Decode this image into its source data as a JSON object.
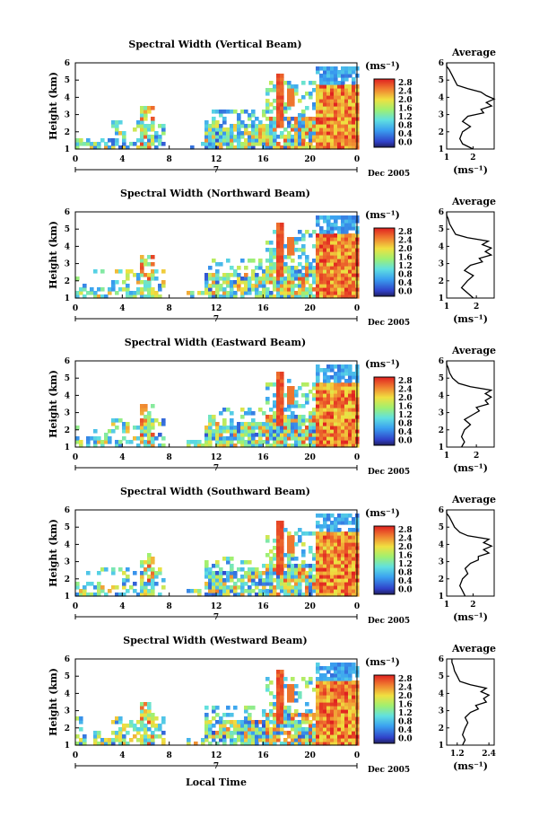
{
  "chart_data": [
    {
      "type": "heatmap",
      "title": "Spectral Width (Vertical Beam)",
      "ylabel": "Height (km)",
      "colorbar_unit": "(ms⁻¹)",
      "colorbar_ticks": [
        "2.8",
        "2.4",
        "2.0",
        "1.6",
        "1.2",
        "0.8",
        "0.4",
        "0.0"
      ],
      "colorbar_range": [
        0,
        3.0
      ],
      "x_ticks": [
        "0",
        "4",
        "8",
        "12",
        "16",
        "20",
        "0"
      ],
      "date_label": "7",
      "month_label": "Dec 2005",
      "y_ticks": [
        "6",
        "5",
        "4",
        "3",
        "2",
        "1"
      ],
      "average": {
        "title": "Average",
        "x_ticks": [
          "1",
          "2"
        ],
        "xlabel": "(ms⁻¹)",
        "xlim": [
          1.0,
          2.8
        ],
        "height": [
          1.0,
          1.3,
          1.6,
          2.0,
          2.3,
          2.6,
          2.9,
          3.1,
          3.3,
          3.5,
          3.7,
          3.9,
          4.1,
          4.3,
          4.5,
          4.7,
          5.0,
          5.3,
          5.6,
          5.8,
          6.0
        ],
        "value": [
          2.0,
          1.6,
          1.5,
          1.6,
          1.9,
          1.6,
          1.8,
          2.4,
          2.3,
          2.7,
          2.5,
          2.8,
          2.5,
          2.3,
          1.8,
          1.4,
          1.3,
          1.2,
          1.1,
          1.0,
          1.0
        ]
      }
    },
    {
      "type": "heatmap",
      "title": "Spectral Width (Northward Beam)",
      "ylabel": "Height (km)",
      "colorbar_unit": "(ms⁻¹)",
      "colorbar_ticks": [
        "2.8",
        "2.4",
        "2.0",
        "1.6",
        "1.2",
        "0.8",
        "0.4",
        "0.0"
      ],
      "colorbar_range": [
        0,
        3.0
      ],
      "x_ticks": [
        "0",
        "4",
        "8",
        "12",
        "16",
        "20",
        "0"
      ],
      "date_label": "7",
      "month_label": "Dec 2005",
      "y_ticks": [
        "6",
        "5",
        "4",
        "3",
        "2",
        "1"
      ],
      "average": {
        "title": "Average",
        "x_ticks": [
          "1",
          "2"
        ],
        "xlabel": "(ms⁻¹)",
        "xlim": [
          1.0,
          2.6
        ],
        "height": [
          1.0,
          1.3,
          1.6,
          2.0,
          2.3,
          2.6,
          2.9,
          3.1,
          3.3,
          3.5,
          3.7,
          3.9,
          4.1,
          4.3,
          4.5,
          4.7,
          5.0,
          5.3,
          5.6,
          5.8,
          6.0
        ],
        "value": [
          1.9,
          1.7,
          1.5,
          1.7,
          1.9,
          1.6,
          1.8,
          2.2,
          2.1,
          2.5,
          2.3,
          2.5,
          2.2,
          2.4,
          1.7,
          1.3,
          1.2,
          1.1,
          1.05,
          1.0,
          1.0
        ]
      }
    },
    {
      "type": "heatmap",
      "title": "Spectral Width (Eastward Beam)",
      "ylabel": "Height (km)",
      "colorbar_unit": "(ms⁻¹)",
      "colorbar_ticks": [
        "2.8",
        "2.4",
        "2.0",
        "1.6",
        "1.2",
        "0.8",
        "0.4",
        "0.0"
      ],
      "colorbar_range": [
        0,
        3.0
      ],
      "x_ticks": [
        "0",
        "4",
        "8",
        "12",
        "16",
        "20",
        "0"
      ],
      "date_label": "7",
      "month_label": "Dec 2005",
      "y_ticks": [
        "6",
        "5",
        "4",
        "3",
        "2",
        "1"
      ],
      "average": {
        "title": "Average",
        "x_ticks": [
          "1",
          "2"
        ],
        "xlabel": "(ms⁻¹)",
        "xlim": [
          1.0,
          2.6
        ],
        "height": [
          1.0,
          1.3,
          1.6,
          2.0,
          2.3,
          2.6,
          2.9,
          3.1,
          3.3,
          3.5,
          3.7,
          3.9,
          4.1,
          4.3,
          4.5,
          4.7,
          5.0,
          5.3,
          5.6,
          5.8,
          6.0
        ],
        "value": [
          1.5,
          1.6,
          1.5,
          1.6,
          1.8,
          1.6,
          1.9,
          2.1,
          2.0,
          2.4,
          2.3,
          2.5,
          2.3,
          2.5,
          1.8,
          1.4,
          1.2,
          1.1,
          1.05,
          1.0,
          1.0
        ]
      }
    },
    {
      "type": "heatmap",
      "title": "Spectral Width (Southward Beam)",
      "ylabel": "Height (km)",
      "colorbar_unit": "(ms⁻¹)",
      "colorbar_ticks": [
        "2.8",
        "2.4",
        "2.0",
        "1.6",
        "1.2",
        "0.8",
        "0.4",
        "0.0"
      ],
      "colorbar_range": [
        0,
        3.0
      ],
      "x_ticks": [
        "0",
        "4",
        "8",
        "12",
        "16",
        "20",
        "0"
      ],
      "date_label": "7",
      "month_label": "Dec 2005",
      "y_ticks": [
        "6",
        "5",
        "4",
        "3",
        "2",
        "1"
      ],
      "average": {
        "title": "Average",
        "x_ticks": [
          "1",
          "2"
        ],
        "xlabel": "(ms⁻¹)",
        "xlim": [
          1.0,
          2.8
        ],
        "height": [
          1.0,
          1.3,
          1.6,
          2.0,
          2.3,
          2.6,
          2.9,
          3.1,
          3.3,
          3.5,
          3.7,
          3.9,
          4.1,
          4.3,
          4.5,
          4.7,
          5.0,
          5.3,
          5.6,
          5.8,
          6.0
        ],
        "value": [
          1.7,
          1.6,
          1.5,
          1.6,
          1.8,
          1.7,
          1.9,
          2.2,
          2.2,
          2.6,
          2.4,
          2.7,
          2.4,
          2.6,
          1.8,
          1.5,
          1.3,
          1.2,
          1.1,
          1.0,
          1.0
        ]
      }
    },
    {
      "type": "heatmap",
      "title": "Spectral Width (Westward Beam)",
      "ylabel": "Height (km)",
      "colorbar_unit": "(ms⁻¹)",
      "colorbar_ticks": [
        "2.8",
        "2.4",
        "2.0",
        "1.6",
        "1.2",
        "0.8",
        "0.4",
        "0.0"
      ],
      "colorbar_range": [
        0,
        3.0
      ],
      "x_ticks": [
        "0",
        "4",
        "8",
        "12",
        "16",
        "20",
        "0"
      ],
      "date_label": "7",
      "month_label": "Dec 2005",
      "y_ticks": [
        "6",
        "5",
        "4",
        "3",
        "2",
        "1"
      ],
      "xlabel": "Local Time",
      "average": {
        "title": "Average",
        "x_ticks": [
          "1.2",
          "2.4"
        ],
        "xlabel": "(ms⁻¹)",
        "xlim": [
          0.8,
          2.6
        ],
        "height": [
          1.0,
          1.3,
          1.6,
          2.0,
          2.3,
          2.6,
          2.9,
          3.1,
          3.3,
          3.5,
          3.7,
          3.9,
          4.1,
          4.3,
          4.5,
          4.7,
          5.0,
          5.3,
          5.6,
          5.8,
          6.0
        ],
        "value": [
          1.4,
          1.5,
          1.4,
          1.5,
          1.6,
          1.5,
          1.7,
          2.0,
          1.9,
          2.3,
          2.2,
          2.4,
          2.1,
          2.3,
          1.7,
          1.3,
          1.2,
          1.1,
          1.05,
          1.0,
          1.0
        ]
      }
    }
  ]
}
